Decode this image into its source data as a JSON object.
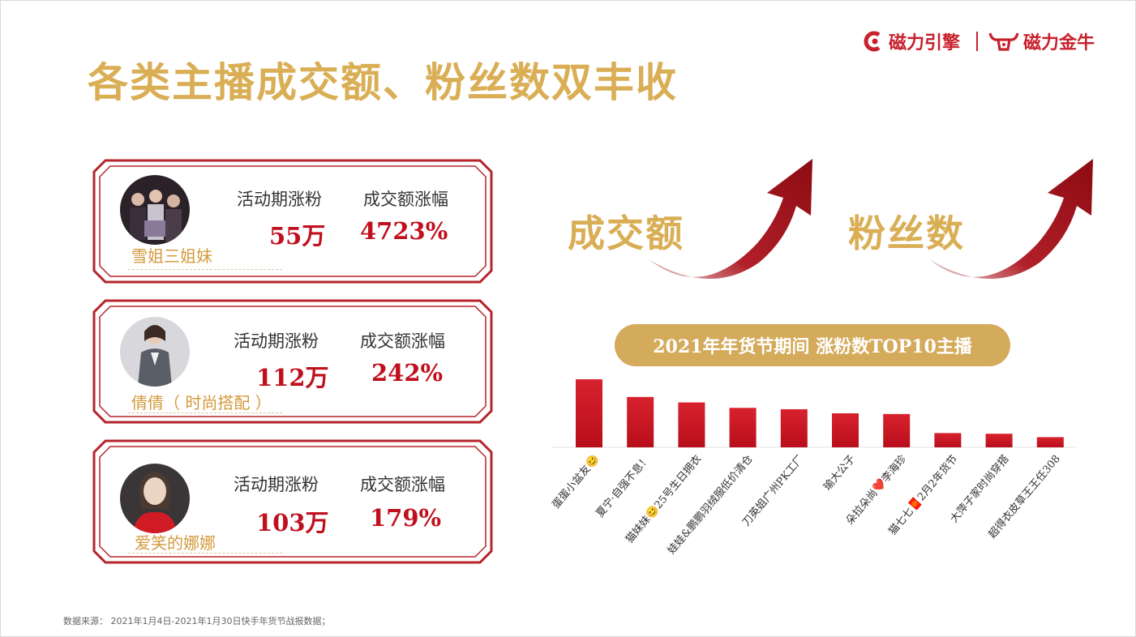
{
  "page": {
    "title": "各类主播成交额、粉丝数双丰收",
    "source": "数据来源：  2021年1月4日-2021年1月30日快手年货节战报数据；"
  },
  "logos": {
    "logo1": "磁力引擎",
    "logo2": "磁力金牛"
  },
  "cards": [
    {
      "name": "雪姐三姐妹",
      "fans_label": "活动期涨粉",
      "sales_label": "成交额涨幅",
      "fans_value": "55万",
      "sales_value": "4723%"
    },
    {
      "name": "倩倩（ 时尚搭配 ）",
      "fans_label": "活动期涨粉",
      "sales_label": "成交额涨幅",
      "fans_value": "112万",
      "sales_value": "242%"
    },
    {
      "name": "爱笑的娜娜",
      "fans_label": "活动期涨粉",
      "sales_label": "成交额涨幅",
      "fans_value": "103万",
      "sales_value": "179%"
    }
  ],
  "highlights": {
    "left": "成交额",
    "right": "粉丝数"
  },
  "colors": {
    "accent_gold": "#d9ae55",
    "accent_red": "#c0101d"
  },
  "chart_data": {
    "type": "bar",
    "title": "2021年年货节期间  涨粉数TOP10主播",
    "categories": [
      "蛋蛋小盆友😊",
      "夏宁·自强不息！",
      "猫妹妹😊25号生日拥衣",
      "娃娃&鹏鹏羽绒服低价清仓",
      "刀英姐广州PK工厂",
      "瑜大公子",
      "朵拉朵尚❤️李海珍",
      "猫七七🧧2月2年货节",
      "大萍子家时尚穿搭",
      "超得衣皮草王王任308"
    ],
    "values": [
      100,
      74,
      66,
      58,
      56,
      50,
      49,
      21,
      20,
      15
    ],
    "ylim": [
      0,
      100
    ],
    "grid": false,
    "color": "#c0101d"
  }
}
